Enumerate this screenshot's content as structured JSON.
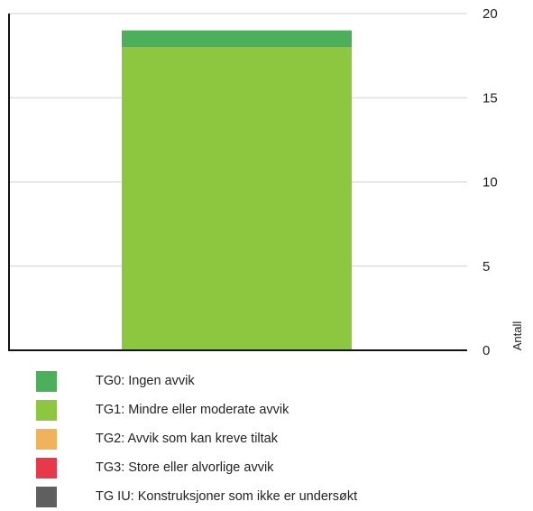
{
  "chart_data": {
    "type": "bar",
    "stacked": true,
    "categories": [
      ""
    ],
    "series": [
      {
        "name": "TG0: Ingen avvik",
        "color": "#4caf5c",
        "values": [
          1
        ]
      },
      {
        "name": "TG1: Mindre eller moderate avvik",
        "color": "#8dc63f",
        "values": [
          18
        ]
      },
      {
        "name": "TG2: Avvik som kan kreve tiltak",
        "color": "#f0b25a",
        "values": [
          0
        ]
      },
      {
        "name": "TG3: Store eller alvorlige avvik",
        "color": "#e8394a",
        "values": [
          0
        ]
      },
      {
        "name": "TG IU: Konstruksjoner som ikke er undersøkt",
        "color": "#5f5f5f",
        "values": [
          0
        ]
      }
    ],
    "stack_order": [
      1,
      0
    ],
    "ylabel": "Antall",
    "ylim": [
      0,
      20
    ],
    "yticks": [
      "0",
      "5",
      "10",
      "15",
      "20"
    ],
    "ytick_values": [
      0,
      5,
      10,
      15,
      20
    ],
    "y_axis_side": "right",
    "grid": true,
    "legend_position": "bottom"
  }
}
